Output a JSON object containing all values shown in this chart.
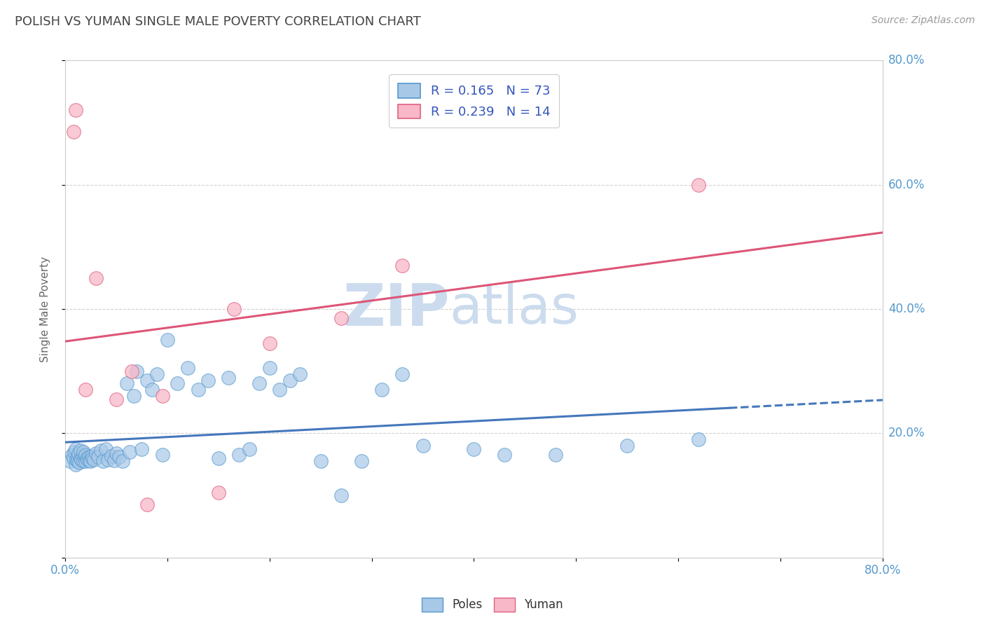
{
  "title": "POLISH VS YUMAN SINGLE MALE POVERTY CORRELATION CHART",
  "source": "Source: ZipAtlas.com",
  "ylabel": "Single Male Poverty",
  "xlim": [
    0,
    0.8
  ],
  "ylim": [
    0,
    0.8
  ],
  "poles_color": "#a8c8e8",
  "poles_edge_color": "#5599cc",
  "yuman_color": "#f8b8c8",
  "yuman_edge_color": "#e06080",
  "trend_poles_color": "#4477bb",
  "trend_yuman_color": "#dd5577",
  "poles_R": 0.165,
  "poles_N": 73,
  "yuman_R": 0.239,
  "yuman_N": 14,
  "watermark": "ZIPatlas",
  "watermark_color": "#ccdcee",
  "poles_x": [
    0.005,
    0.007,
    0.008,
    0.009,
    0.01,
    0.01,
    0.011,
    0.012,
    0.012,
    0.013,
    0.014,
    0.015,
    0.015,
    0.016,
    0.017,
    0.018,
    0.018,
    0.019,
    0.02,
    0.02,
    0.021,
    0.022,
    0.023,
    0.024,
    0.025,
    0.026,
    0.027,
    0.028,
    0.03,
    0.032,
    0.035,
    0.037,
    0.04,
    0.042,
    0.045,
    0.048,
    0.05,
    0.053,
    0.056,
    0.06,
    0.063,
    0.067,
    0.07,
    0.075,
    0.08,
    0.085,
    0.09,
    0.095,
    0.1,
    0.11,
    0.12,
    0.13,
    0.14,
    0.15,
    0.16,
    0.17,
    0.18,
    0.19,
    0.2,
    0.21,
    0.22,
    0.23,
    0.25,
    0.27,
    0.29,
    0.31,
    0.33,
    0.35,
    0.4,
    0.43,
    0.48,
    0.55,
    0.62
  ],
  "poles_y": [
    0.155,
    0.165,
    0.16,
    0.17,
    0.15,
    0.175,
    0.158,
    0.162,
    0.155,
    0.168,
    0.153,
    0.16,
    0.172,
    0.158,
    0.163,
    0.155,
    0.17,
    0.162,
    0.155,
    0.165,
    0.16,
    0.158,
    0.162,
    0.157,
    0.155,
    0.163,
    0.16,
    0.158,
    0.168,
    0.162,
    0.172,
    0.155,
    0.175,
    0.158,
    0.163,
    0.157,
    0.168,
    0.162,
    0.155,
    0.28,
    0.17,
    0.26,
    0.3,
    0.175,
    0.285,
    0.27,
    0.295,
    0.165,
    0.35,
    0.28,
    0.305,
    0.27,
    0.285,
    0.16,
    0.29,
    0.165,
    0.175,
    0.28,
    0.305,
    0.27,
    0.285,
    0.295,
    0.155,
    0.1,
    0.155,
    0.27,
    0.295,
    0.18,
    0.175,
    0.165,
    0.165,
    0.18,
    0.19
  ],
  "yuman_x": [
    0.008,
    0.01,
    0.02,
    0.03,
    0.05,
    0.065,
    0.08,
    0.095,
    0.15,
    0.165,
    0.2,
    0.27,
    0.33,
    0.62
  ],
  "yuman_y": [
    0.685,
    0.72,
    0.27,
    0.45,
    0.255,
    0.3,
    0.085,
    0.26,
    0.105,
    0.4,
    0.345,
    0.385,
    0.47,
    0.6
  ],
  "grid_color": "#cccccc",
  "background_color": "#ffffff",
  "title_color": "#444444",
  "axis_label_color": "#666666",
  "tick_color": "#5599cc",
  "legend_label_color": "#3355bb"
}
